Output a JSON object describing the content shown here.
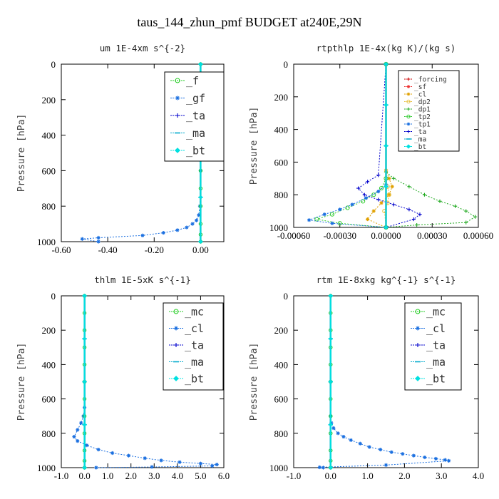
{
  "figure": {
    "title": "taus_144_zhun_pmf  BUDGET at240E,29N"
  },
  "chart_data": [
    {
      "type": "line",
      "title": "um  1E-4xm s^{-2}",
      "ylabel": "Pressure [hPa]",
      "xlabel": "",
      "xlim": [
        -0.6,
        0.1
      ],
      "ylim": [
        1000,
        0
      ],
      "xticks": [
        -0.6,
        -0.4,
        -0.2,
        0.0
      ],
      "xtick_labels": [
        "-0.60",
        "-0.40",
        "-0.20",
        "0.00"
      ],
      "yticks": [
        0,
        200,
        400,
        600,
        800,
        1000
      ],
      "ytick_labels": [
        "0",
        "200",
        "400",
        "600",
        "800",
        "1000"
      ],
      "grid": false,
      "legend_position": "top-right",
      "series": [
        {
          "name": "_f",
          "color": "#22cc22",
          "marker": "o",
          "x": [
            0,
            0,
            0,
            0,
            0,
            0,
            0,
            0,
            0,
            0,
            0,
            0
          ],
          "y": [
            0,
            100,
            200,
            300,
            400,
            500,
            600,
            700,
            800,
            900,
            960,
            1000
          ]
        },
        {
          "name": "_gf",
          "color": "#1a6fe0",
          "marker": "*",
          "x": [
            0.0,
            0.0,
            0.0,
            -0.003,
            -0.008,
            -0.018,
            -0.035,
            -0.06,
            -0.1,
            -0.16,
            -0.25,
            -0.44,
            -0.51,
            -0.44
          ],
          "y": [
            0,
            300,
            600,
            800,
            850,
            880,
            900,
            920,
            935,
            950,
            965,
            978,
            985,
            1000
          ]
        },
        {
          "name": "_ta",
          "color": "#0000cc",
          "marker": "+",
          "x": [
            0,
            0,
            0,
            0,
            0
          ],
          "y": [
            0,
            250,
            500,
            750,
            1000
          ]
        },
        {
          "name": "_ma",
          "color": "#00aacc",
          "marker": "_",
          "x": [
            0,
            0,
            0,
            0,
            0
          ],
          "y": [
            0,
            250,
            500,
            750,
            1000
          ]
        },
        {
          "name": "_bt",
          "color": "#00e0e0",
          "marker": "D",
          "x": [
            0,
            0,
            0,
            0,
            0
          ],
          "y": [
            0,
            250,
            500,
            750,
            1000
          ]
        }
      ]
    },
    {
      "type": "line",
      "title": "rtpthlp  1E-4x(kg K)/(kg s)",
      "ylabel": "Pressure [hPa]",
      "xlabel": "",
      "xlim": [
        -0.0006,
        0.0006
      ],
      "ylim": [
        1000,
        0
      ],
      "xticks": [
        -0.0006,
        -0.0003,
        0.0,
        0.0003,
        0.0006
      ],
      "xtick_labels": [
        "-0.00060",
        "-0.00030",
        "0.00000",
        "0.00030",
        "0.00060"
      ],
      "yticks": [
        0,
        200,
        400,
        600,
        800,
        1000
      ],
      "ytick_labels": [
        "0",
        "200",
        "400",
        "600",
        "800",
        "1000"
      ],
      "grid": false,
      "legend_position": "top-right",
      "series": [
        {
          "name": "_forcing",
          "color": "#cc0000",
          "marker": "+",
          "x": [
            0,
            0,
            0,
            0,
            0
          ],
          "y": [
            0,
            250,
            500,
            750,
            1000
          ]
        },
        {
          "name": "_sf",
          "color": "#ee3333",
          "marker": "*",
          "x": [
            0,
            0,
            0,
            0,
            0
          ],
          "y": [
            0,
            250,
            500,
            750,
            1000
          ]
        },
        {
          "name": "_cl",
          "color": "#e0a000",
          "marker": "*",
          "x": [
            0,
            0,
            2e-05,
            4e-05,
            2e-05,
            -3e-05,
            -8e-05,
            -0.00012,
            0.0
          ],
          "y": [
            0,
            650,
            700,
            750,
            800,
            850,
            900,
            950,
            1000
          ]
        },
        {
          "name": "_dp2",
          "color": "#e8c040",
          "marker": "o",
          "x": [
            0,
            0,
            1e-05,
            2e-05,
            1e-05,
            -1e-05,
            0.0
          ],
          "y": [
            0,
            700,
            750,
            800,
            850,
            900,
            1000
          ]
        },
        {
          "name": "_dp1",
          "color": "#22aa22",
          "marker": "+",
          "x": [
            0,
            0,
            5e-05,
            0.00015,
            0.00025,
            0.00035,
            0.00045,
            0.00052,
            0.00058,
            0.00052,
            0.0002,
            0.0
          ],
          "y": [
            0,
            660,
            700,
            750,
            800,
            840,
            870,
            900,
            935,
            970,
            985,
            1000
          ]
        },
        {
          "name": "_tp2",
          "color": "#33cc33",
          "marker": "o",
          "x": [
            0,
            0,
            -3e-05,
            -8e-05,
            -0.00015,
            -0.00025,
            -0.00035,
            -0.00045,
            -0.0003,
            0.0
          ],
          "y": [
            0,
            700,
            760,
            800,
            840,
            880,
            920,
            950,
            975,
            1000
          ]
        },
        {
          "name": "_tp1",
          "color": "#1a6fe0",
          "marker": "*",
          "x": [
            0,
            0,
            -5e-05,
            -0.00013,
            -0.00022,
            -0.0003,
            -0.0004,
            -0.0005,
            -0.00035,
            0.0
          ],
          "y": [
            0,
            740,
            780,
            820,
            860,
            890,
            920,
            955,
            975,
            1000
          ]
        },
        {
          "name": "_ta",
          "color": "#0000cc",
          "marker": "+",
          "x": [
            0,
            -5e-05,
            -0.00012,
            -0.00018,
            -0.00014,
            -5e-05,
            5e-05,
            0.00015,
            0.00022,
            0.00018,
            0.0
          ],
          "y": [
            0,
            680,
            720,
            760,
            800,
            830,
            860,
            890,
            920,
            950,
            1000
          ]
        },
        {
          "name": "_ma",
          "color": "#00aacc",
          "marker": "_",
          "x": [
            0,
            0,
            0,
            0,
            0
          ],
          "y": [
            0,
            250,
            500,
            750,
            1000
          ]
        },
        {
          "name": "_bt",
          "color": "#00e0e0",
          "marker": "D",
          "x": [
            0,
            0,
            0,
            0,
            0
          ],
          "y": [
            0,
            250,
            500,
            750,
            1000
          ]
        }
      ]
    },
    {
      "type": "line",
      "title": "thlm  1E-5xK s^{-1}",
      "ylabel": "Pressure [hPa]",
      "xlabel": "",
      "xlim": [
        -1.0,
        6.0
      ],
      "ylim": [
        1000,
        0
      ],
      "xticks": [
        -1.0,
        0.0,
        1.0,
        2.0,
        3.0,
        4.0,
        5.0,
        6.0
      ],
      "xtick_labels": [
        "-1.0",
        "0.0",
        "1.0",
        "2.0",
        "3.0",
        "4.0",
        "5.0",
        "6.0"
      ],
      "yticks": [
        0,
        200,
        400,
        600,
        800,
        1000
      ],
      "ytick_labels": [
        "0",
        "200",
        "400",
        "600",
        "800",
        "1000"
      ],
      "grid": false,
      "legend_position": "top-right",
      "series": [
        {
          "name": "_mc",
          "color": "#22cc22",
          "marker": "o",
          "x": [
            0,
            0,
            0,
            0,
            0,
            0,
            0,
            0,
            0,
            0,
            0,
            0
          ],
          "y": [
            0,
            100,
            200,
            300,
            400,
            500,
            600,
            700,
            800,
            900,
            960,
            1000
          ]
        },
        {
          "name": "_cl",
          "color": "#1a6fe0",
          "marker": "*",
          "x": [
            0,
            0,
            0,
            -0.05,
            -0.15,
            -0.3,
            -0.45,
            -0.3,
            0.1,
            0.6,
            1.2,
            1.9,
            2.6,
            3.3,
            4.1,
            5.0,
            5.7,
            5.5,
            2.9,
            0.5
          ],
          "y": [
            0,
            500,
            650,
            700,
            740,
            780,
            820,
            845,
            870,
            895,
            915,
            930,
            945,
            958,
            968,
            976,
            982,
            990,
            996,
            1000
          ]
        },
        {
          "name": "_ta",
          "color": "#0000cc",
          "marker": "+",
          "x": [
            0,
            0,
            0,
            0,
            0
          ],
          "y": [
            0,
            250,
            500,
            750,
            1000
          ]
        },
        {
          "name": "_ma",
          "color": "#00aacc",
          "marker": "_",
          "x": [
            0,
            0,
            0,
            0,
            0
          ],
          "y": [
            0,
            250,
            500,
            750,
            1000
          ]
        },
        {
          "name": "_bt",
          "color": "#00e0e0",
          "marker": "D",
          "x": [
            0,
            0,
            0,
            0,
            0
          ],
          "y": [
            0,
            250,
            500,
            750,
            1000
          ]
        }
      ]
    },
    {
      "type": "line",
      "title": "rtm  1E-8xkg kg^{-1} s^{-1}",
      "ylabel": "Pressure [hPa]",
      "xlabel": "",
      "xlim": [
        -1.0,
        4.0
      ],
      "ylim": [
        1000,
        0
      ],
      "xticks": [
        -1.0,
        0.0,
        1.0,
        2.0,
        3.0,
        4.0
      ],
      "xtick_labels": [
        "-1.0",
        "0.0",
        "1.0",
        "2.0",
        "3.0",
        "4.0"
      ],
      "yticks": [
        0,
        200,
        400,
        600,
        800,
        1000
      ],
      "ytick_labels": [
        "0",
        "200",
        "400",
        "600",
        "800",
        "1000"
      ],
      "grid": false,
      "legend_position": "top-right",
      "series": [
        {
          "name": "_mc",
          "color": "#22cc22",
          "marker": "o",
          "x": [
            0,
            0,
            0,
            0,
            0,
            0,
            0,
            0,
            0,
            0,
            0,
            0
          ],
          "y": [
            0,
            100,
            200,
            300,
            400,
            500,
            600,
            700,
            800,
            900,
            960,
            1000
          ]
        },
        {
          "name": "_cl",
          "color": "#1a6fe0",
          "marker": "*",
          "x": [
            0,
            0,
            0,
            0.02,
            0.08,
            0.2,
            0.35,
            0.55,
            0.8,
            1.05,
            1.35,
            1.65,
            1.95,
            2.25,
            2.55,
            2.85,
            3.1,
            3.2,
            1.5,
            -0.3,
            -0.2
          ],
          "y": [
            0,
            500,
            700,
            740,
            770,
            800,
            820,
            840,
            860,
            880,
            895,
            910,
            920,
            930,
            940,
            948,
            955,
            960,
            985,
            998,
            1000
          ]
        },
        {
          "name": "_ta",
          "color": "#0000cc",
          "marker": "+",
          "x": [
            0,
            0,
            0,
            0,
            0
          ],
          "y": [
            0,
            250,
            500,
            750,
            1000
          ]
        },
        {
          "name": "_ma",
          "color": "#00aacc",
          "marker": "_",
          "x": [
            0,
            0,
            0,
            0,
            0
          ],
          "y": [
            0,
            250,
            500,
            750,
            1000
          ]
        },
        {
          "name": "_bt",
          "color": "#00e0e0",
          "marker": "D",
          "x": [
            0,
            0,
            0,
            0,
            0
          ],
          "y": [
            0,
            250,
            500,
            750,
            1000
          ]
        }
      ]
    }
  ]
}
